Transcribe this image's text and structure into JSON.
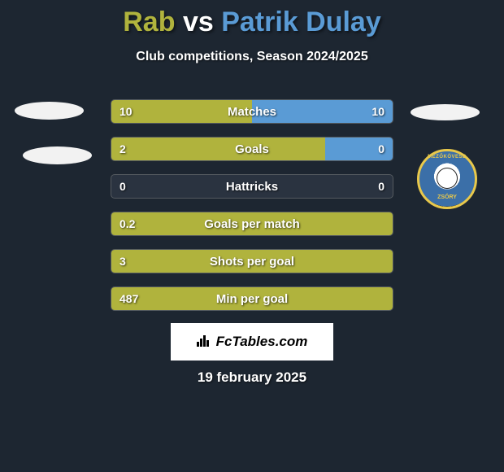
{
  "header": {
    "player1": "Rab",
    "vs": "vs",
    "player2": "Patrik Dulay",
    "subtitle": "Club competitions, Season 2024/2025",
    "player1_color": "#b0b33d",
    "player2_color": "#5a9bd5",
    "title_fontsize": 34,
    "subtitle_fontsize": 16
  },
  "stats": [
    {
      "label": "Matches",
      "left_val": "10",
      "right_val": "10",
      "left_pct": 50,
      "right_pct": 50,
      "show_right": true
    },
    {
      "label": "Goals",
      "left_val": "2",
      "right_val": "0",
      "left_pct": 76,
      "right_pct": 24,
      "show_right": true
    },
    {
      "label": "Hattricks",
      "left_val": "0",
      "right_val": "0",
      "left_pct": 0,
      "right_pct": 0,
      "show_right": true
    },
    {
      "label": "Goals per match",
      "left_val": "0.2",
      "right_val": "",
      "left_pct": 100,
      "right_pct": 0,
      "show_right": false
    },
    {
      "label": "Shots per goal",
      "left_val": "3",
      "right_val": "",
      "left_pct": 100,
      "right_pct": 0,
      "show_right": false
    },
    {
      "label": "Min per goal",
      "left_val": "487",
      "right_val": "",
      "left_pct": 100,
      "right_pct": 0,
      "show_right": false
    }
  ],
  "bars": {
    "left_color": "#b0b33d",
    "right_color": "#5a9bd5",
    "track_bg": "#2a3340",
    "border_color": "#545a5f",
    "height": 30,
    "gap": 16,
    "text_color": "#ffffff",
    "label_fontsize": 15,
    "value_fontsize": 14
  },
  "crest": {
    "top_text": "MEZŐKÖVESD",
    "bottom_text": "ZSÓRY",
    "ring_color": "#3b6fa8",
    "accent_color": "#e8c84b"
  },
  "brand": {
    "text": "FcTables.com",
    "bg": "#ffffff",
    "fg": "#000000"
  },
  "date": "19 february 2025",
  "background_color": "#1d2631"
}
